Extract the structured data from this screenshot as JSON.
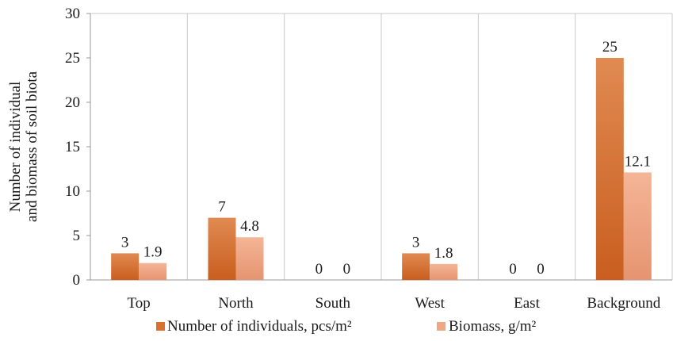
{
  "chart_data": {
    "type": "bar",
    "title": "",
    "xlabel": "",
    "ylabel": [
      "Number of individual",
      "and biomass of soil biota"
    ],
    "ylim": [
      0,
      30
    ],
    "yticks": [
      0,
      5,
      10,
      15,
      20,
      25,
      30
    ],
    "categories": [
      "Top",
      "North",
      "South",
      "West",
      "East",
      "Background"
    ],
    "series": [
      {
        "name": "Number of individuals, pcs/m²",
        "values": [
          3,
          7,
          0,
          3,
          0,
          25
        ],
        "labels": [
          "3",
          "7",
          "0",
          "3",
          "0",
          "25"
        ],
        "color": "#d9722f",
        "color_dark": "#c55a1c"
      },
      {
        "name": "Biomass, g/m²",
        "values": [
          1.9,
          4.8,
          0,
          1.8,
          0,
          12.1
        ],
        "labels": [
          "1.9",
          "4.8",
          "0",
          "1.8",
          "0",
          "12.1"
        ],
        "color": "#f0a784",
        "color_dark": "#e08c64"
      }
    ],
    "grid": "vertical separators between categories",
    "legend": "bottom"
  }
}
